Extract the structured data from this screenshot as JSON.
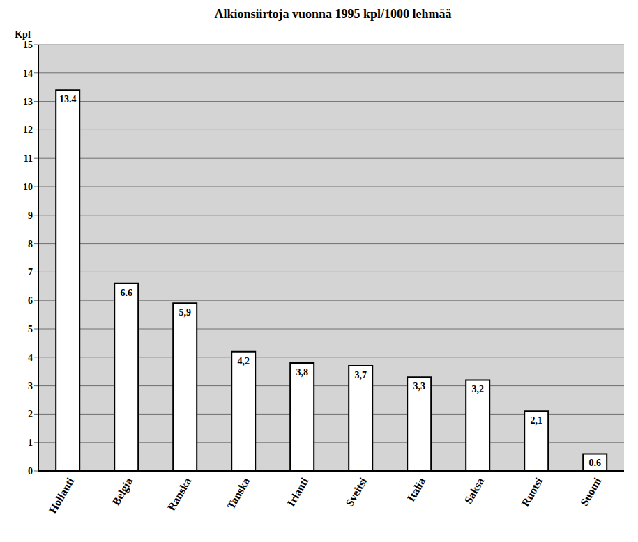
{
  "chart_data": {
    "type": "bar",
    "title": "Alkionsiirtoja vuonna 1995 kpl/1000 lehmää",
    "y_label": "Kpl",
    "categories": [
      "Hollanti",
      "Belgia",
      "Ranska",
      "Tanska",
      "Irlanti",
      "Sveitsi",
      "Italia",
      "Saksa",
      "Ruotsi",
      "Suomi"
    ],
    "values": [
      13.4,
      6.6,
      5.9,
      4.2,
      3.8,
      3.7,
      3.3,
      3.2,
      2.1,
      0.6
    ],
    "value_labels": [
      "13.4",
      "6.6",
      "5,9",
      "4,2",
      "3,8",
      "3,7",
      "3,3",
      "3,2",
      "2,1",
      "0.6"
    ],
    "color": "#ffffff",
    "ylim": [
      0,
      15
    ],
    "yticks": [
      0,
      1,
      2,
      3,
      4,
      5,
      6,
      7,
      8,
      9,
      10,
      11,
      12,
      13,
      14,
      15
    ],
    "grid": true,
    "data_labels": true
  }
}
